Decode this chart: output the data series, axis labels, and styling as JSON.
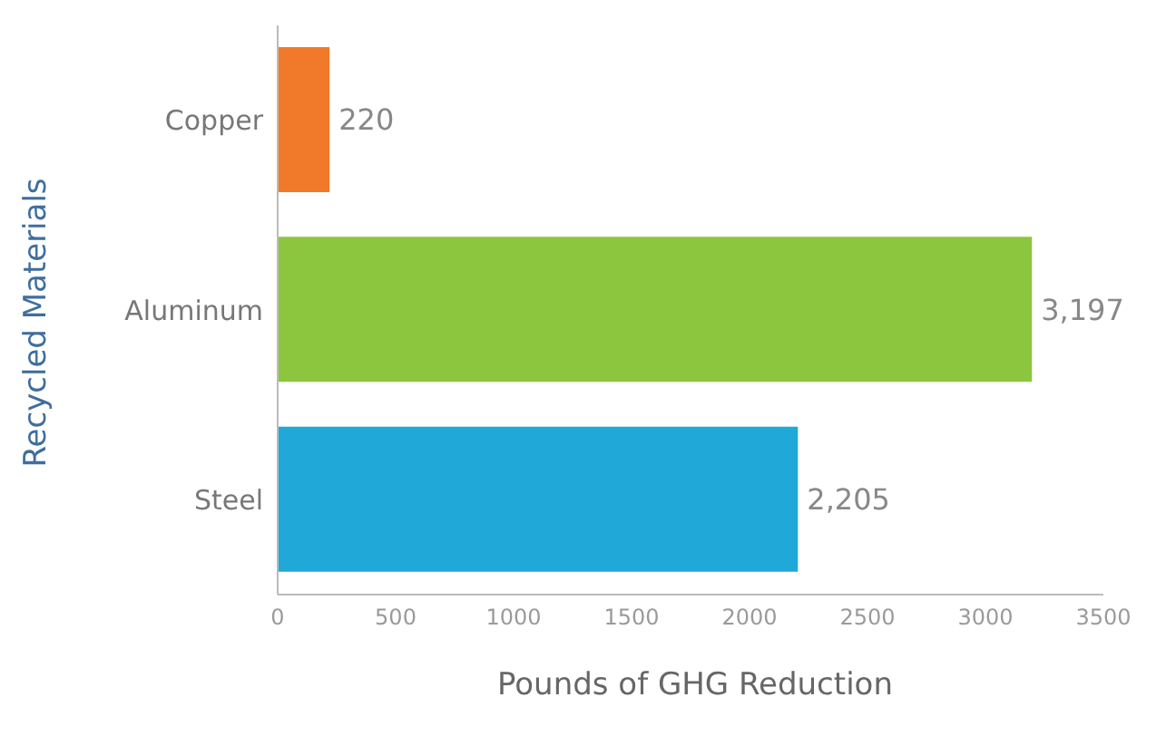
{
  "chart_data": {
    "type": "bar",
    "orientation": "horizontal",
    "xlabel": "Pounds of GHG Reduction",
    "ylabel": "Recycled Materials",
    "categories": [
      "Copper",
      "Aluminum",
      "Steel"
    ],
    "values": [
      220,
      3197,
      2205
    ],
    "colors": [
      "#f07a2a",
      "#8cc63f",
      "#1fa8d8"
    ],
    "value_labels": [
      "220",
      "3,197",
      "2,205"
    ],
    "xlim": [
      0,
      3500
    ],
    "xticks": [
      0,
      500,
      1000,
      1500,
      2000,
      2500,
      3000,
      3500
    ],
    "grid": false
  }
}
